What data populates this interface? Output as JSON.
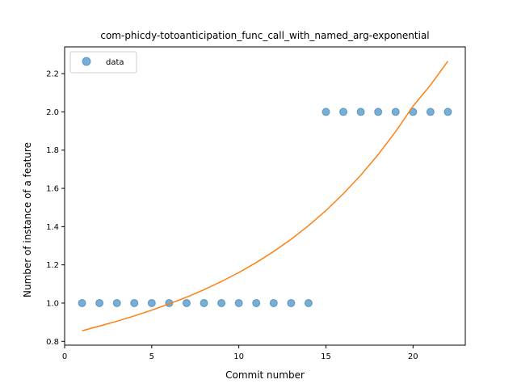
{
  "chart_data": {
    "type": "scatter",
    "title": "com-phicdy-totoanticipation_func_call_with_named_arg-exponential",
    "xlabel": "Commit number",
    "ylabel": "Number of instance of a feature",
    "xlim": [
      0,
      23
    ],
    "ylim": [
      0.78,
      2.34
    ],
    "xticks": [
      0,
      5,
      10,
      15,
      20
    ],
    "yticks": [
      0.8,
      1.0,
      1.2,
      1.4,
      1.6,
      1.8,
      2.0,
      2.2
    ],
    "ytick_labels": [
      "0.8",
      "1.0",
      "1.2",
      "1.4",
      "1.6",
      "1.8",
      "2.0",
      "2.2"
    ],
    "legend_position": "upper-left",
    "grid": false,
    "series": [
      {
        "name": "data",
        "kind": "scatter",
        "color": "#1f77b4",
        "x": [
          1,
          2,
          3,
          4,
          5,
          6,
          7,
          8,
          9,
          10,
          11,
          12,
          13,
          14,
          15,
          16,
          17,
          18,
          19,
          20,
          21,
          22
        ],
        "y": [
          1,
          1,
          1,
          1,
          1,
          1,
          1,
          1,
          1,
          1,
          1,
          1,
          1,
          1,
          2,
          2,
          2,
          2,
          2,
          2,
          2,
          2
        ]
      },
      {
        "kind": "line",
        "color": "#ff7f0e",
        "x": [
          1,
          2,
          3,
          4,
          5,
          6,
          7,
          8,
          9,
          10,
          11,
          12,
          13,
          14,
          15,
          16,
          17,
          18,
          19,
          20,
          21,
          22
        ],
        "y": [
          0.855,
          0.88,
          0.905,
          0.933,
          0.963,
          0.996,
          1.031,
          1.07,
          1.113,
          1.16,
          1.212,
          1.27,
          1.334,
          1.405,
          1.484,
          1.572,
          1.669,
          1.777,
          1.897,
          2.03,
          2.14,
          2.265
        ]
      }
    ]
  }
}
